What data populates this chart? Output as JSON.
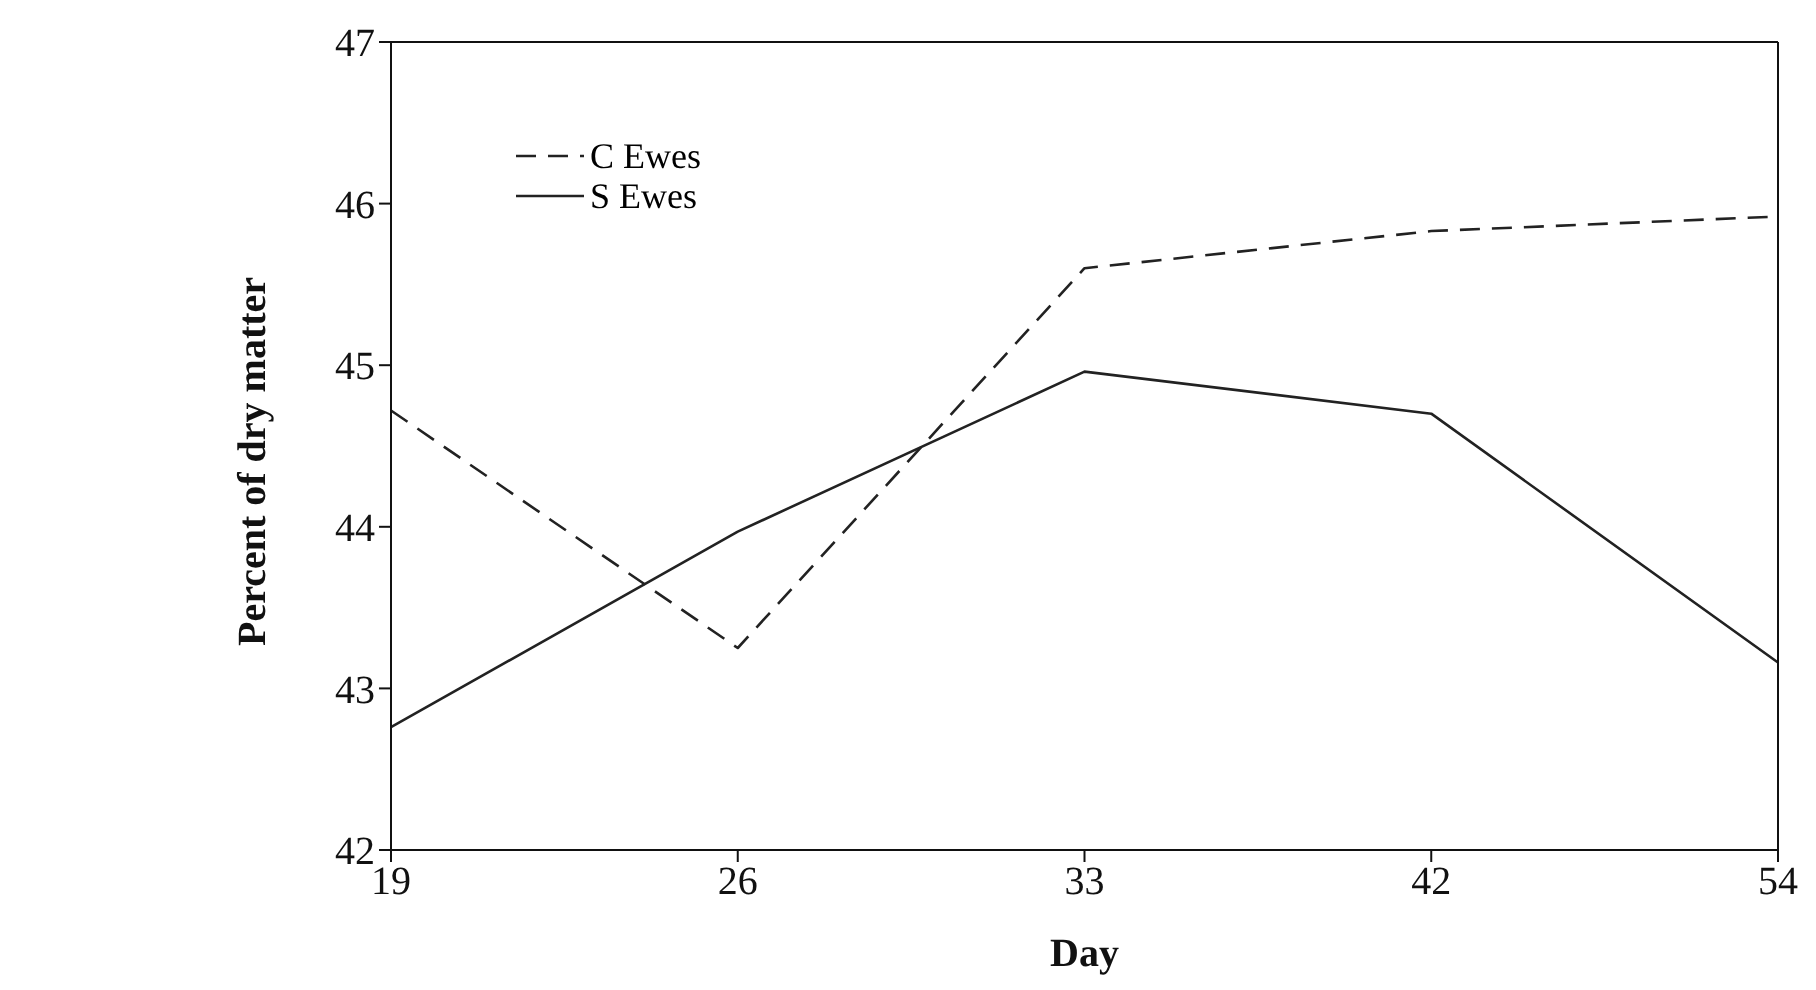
{
  "chart_data": {
    "type": "line",
    "xlabel": "Day",
    "ylabel": "Percent of dry matter",
    "categories": [
      "19",
      "26",
      "33",
      "42",
      "54"
    ],
    "series": [
      {
        "name": "C Ewes",
        "color": "#222222",
        "line_style": "dashed",
        "values": [
          44.72,
          43.25,
          45.6,
          45.83,
          45.92
        ]
      },
      {
        "name": "S Ewes",
        "color": "#222222",
        "line_style": "solid",
        "values": [
          42.76,
          43.97,
          44.96,
          44.7,
          43.16
        ]
      }
    ],
    "ylim": [
      42,
      47
    ],
    "yticks": [
      42,
      43,
      44,
      45,
      46,
      47
    ],
    "grid": false,
    "legend": "top left",
    "marker": "none"
  }
}
